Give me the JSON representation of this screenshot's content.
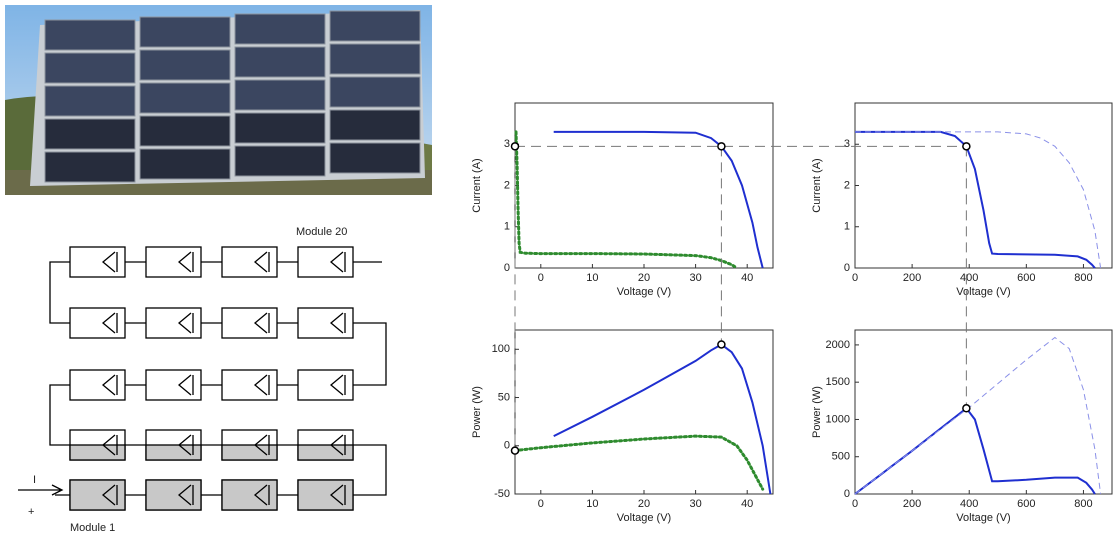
{
  "chart_data": [
    {
      "type": "line",
      "x_label": "Voltage (V)",
      "y_label": "Current (A)",
      "xlim": [
        -5,
        45
      ],
      "ylim": [
        0,
        4
      ],
      "xticks": [
        0,
        10,
        20,
        30,
        40
      ],
      "yticks": [
        0,
        1,
        2,
        3
      ],
      "series": [
        {
          "color": "#1f2fd0",
          "style": "solid",
          "x": [
            2.5,
            10,
            20,
            30,
            33,
            35,
            37,
            39,
            41,
            42,
            43
          ],
          "values": [
            3.3,
            3.3,
            3.3,
            3.28,
            3.15,
            2.95,
            2.6,
            2.0,
            1.1,
            0.5,
            0
          ]
        },
        {
          "color": "#2e8b2e",
          "style": "dotted",
          "x": [
            -4.8,
            -4.6,
            -4.4,
            -4.2,
            -4,
            -3,
            0,
            10,
            20,
            30,
            33,
            35,
            37,
            38
          ],
          "values": [
            3.3,
            2.5,
            1.4,
            0.6,
            0.38,
            0.36,
            0.35,
            0.35,
            0.34,
            0.3,
            0.25,
            0.18,
            0.08,
            0
          ]
        }
      ],
      "markers": {
        "x": [
          -5,
          35
        ],
        "values": [
          2.95,
          2.95
        ]
      }
    },
    {
      "type": "line",
      "x_label": "Voltage (V)",
      "y_label": "Current (A)",
      "xlim": [
        0,
        900
      ],
      "ylim": [
        0,
        4
      ],
      "xticks": [
        0,
        200,
        400,
        600,
        800
      ],
      "yticks": [
        0,
        1,
        2,
        3
      ],
      "series": [
        {
          "color": "#1f2fd0",
          "style": "solid",
          "x": [
            0,
            300,
            350,
            390,
            420,
            450,
            470,
            480,
            500,
            700,
            780,
            810,
            830,
            840
          ],
          "values": [
            3.3,
            3.3,
            3.2,
            2.95,
            2.4,
            1.4,
            0.6,
            0.35,
            0.34,
            0.32,
            0.28,
            0.2,
            0.08,
            0
          ]
        },
        {
          "color": "#8a90e8",
          "style": "dashed",
          "x": [
            0,
            500,
            600,
            650,
            700,
            750,
            800,
            840,
            860
          ],
          "values": [
            3.3,
            3.3,
            3.25,
            3.15,
            2.95,
            2.55,
            1.9,
            0.9,
            0
          ]
        }
      ],
      "markers": {
        "x": [
          390
        ],
        "values": [
          2.95
        ]
      }
    },
    {
      "type": "line",
      "x_label": "Voltage (V)",
      "y_label": "Power (W)",
      "xlim": [
        -5,
        45
      ],
      "ylim": [
        -50,
        120
      ],
      "xticks": [
        0,
        10,
        20,
        30,
        40
      ],
      "yticks": [
        -50,
        0,
        50,
        100
      ],
      "series": [
        {
          "color": "#1f2fd0",
          "style": "solid",
          "x": [
            2.5,
            10,
            20,
            30,
            33,
            35,
            37,
            39,
            41,
            43,
            44.5
          ],
          "values": [
            10,
            30,
            58,
            88,
            99,
            105,
            97,
            80,
            45,
            0,
            -50
          ]
        },
        {
          "color": "#2e8b2e",
          "style": "dotted",
          "x": [
            -5,
            0,
            10,
            20,
            30,
            35,
            38,
            40,
            42,
            43
          ],
          "values": [
            -5,
            -2,
            3,
            7,
            10,
            9,
            0,
            -15,
            -35,
            -45
          ]
        }
      ],
      "markers": {
        "x": [
          -5,
          35
        ],
        "values": [
          -5,
          105
        ]
      }
    },
    {
      "type": "line",
      "x_label": "Voltage (V)",
      "y_label": "Power (W)",
      "xlim": [
        0,
        900
      ],
      "ylim": [
        0,
        2200
      ],
      "xticks": [
        0,
        200,
        400,
        600,
        800
      ],
      "yticks": [
        0,
        500,
        1000,
        1500,
        2000
      ],
      "series": [
        {
          "color": "#1f2fd0",
          "style": "solid",
          "x": [
            0,
            100,
            200,
            300,
            390,
            420,
            450,
            480,
            500,
            600,
            700,
            780,
            810,
            830,
            840
          ],
          "values": [
            0,
            290,
            580,
            880,
            1150,
            1000,
            600,
            170,
            170,
            190,
            220,
            220,
            150,
            60,
            0
          ]
        },
        {
          "color": "#8a90e8",
          "style": "dashed",
          "x": [
            0,
            200,
            400,
            600,
            700,
            750,
            800,
            840,
            860
          ],
          "values": [
            0,
            580,
            1160,
            1800,
            2100,
            1950,
            1400,
            600,
            0
          ]
        }
      ],
      "markers": {
        "x": [
          390
        ],
        "values": [
          1150
        ]
      }
    }
  ],
  "diagram": {
    "top_label": "Module 20",
    "bottom_label": "Module 1",
    "current_label": "I",
    "polarity_label": "+"
  }
}
